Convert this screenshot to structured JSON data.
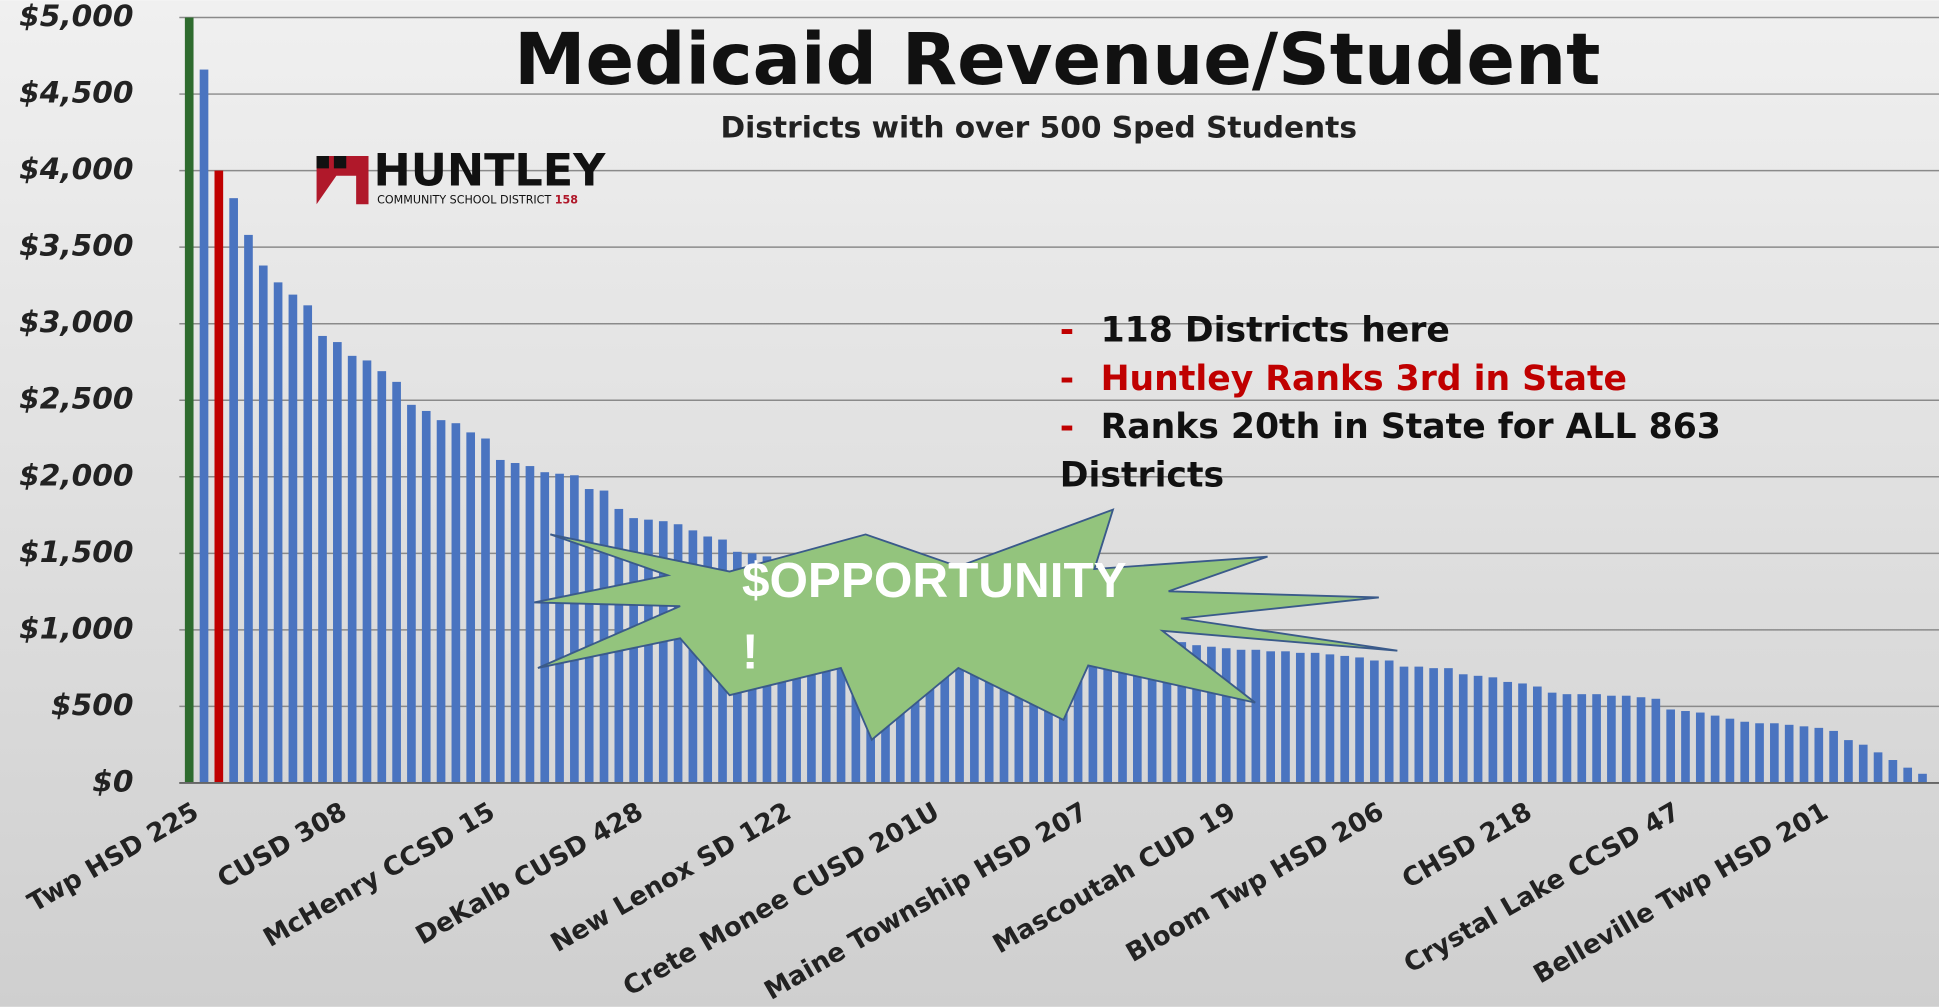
{
  "chart_data": {
    "type": "bar",
    "title": "Medicaid Revenue/Student",
    "subtitle": "Districts with over 500 Sped Students",
    "logo": {
      "name": "HUNTLEY",
      "tagline": "COMMUNITY SCHOOL DISTRICT",
      "number": "158"
    },
    "notes": [
      {
        "bullet": "-",
        "lines": [
          "118 Districts here"
        ],
        "color": "#111111"
      },
      {
        "bullet": "-",
        "lines": [
          "Huntley Ranks 3rd in State"
        ],
        "color": "#c00000"
      },
      {
        "bullet": "-",
        "lines": [
          "Ranks 20th in State for ALL 863",
          "Districts"
        ],
        "color": "#111111"
      }
    ],
    "callout": {
      "lines": [
        "$OPPORTUNITY",
        "!"
      ],
      "color": "#93c47d"
    },
    "categories": [
      "Twp HSD 225",
      null,
      null,
      null,
      null,
      null,
      null,
      null,
      null,
      null,
      "CUSD 308",
      null,
      null,
      null,
      null,
      null,
      null,
      null,
      null,
      null,
      "McHenry CCSD 15",
      null,
      null,
      null,
      null,
      null,
      null,
      null,
      null,
      null,
      "DeKalb CUSD 428",
      null,
      null,
      null,
      null,
      null,
      null,
      null,
      null,
      null,
      "New Lenox SD 122",
      null,
      null,
      null,
      null,
      null,
      null,
      null,
      null,
      null,
      "Crete Monee CUSD 201U",
      null,
      null,
      null,
      null,
      null,
      null,
      null,
      null,
      null,
      "Maine Township HSD 207",
      null,
      null,
      null,
      null,
      null,
      null,
      null,
      null,
      null,
      "Mascoutah CUD 19",
      null,
      null,
      null,
      null,
      null,
      null,
      null,
      null,
      null,
      "Bloom Twp HSD 206",
      null,
      null,
      null,
      null,
      null,
      null,
      null,
      null,
      null,
      "CHSD 218",
      null,
      null,
      null,
      null,
      null,
      null,
      null,
      null,
      null,
      "Crystal Lake CCSD 47",
      null,
      null,
      null,
      null,
      null,
      null,
      null,
      null,
      null,
      "Belleville Twp HSD 201",
      null,
      null,
      null,
      null,
      null,
      null,
      null
    ],
    "values": [
      5000,
      4660,
      4000,
      3820,
      3580,
      3380,
      3270,
      3190,
      3120,
      2920,
      2880,
      2790,
      2760,
      2690,
      2620,
      2470,
      2430,
      2370,
      2350,
      2290,
      2250,
      2110,
      2090,
      2070,
      2030,
      2020,
      2010,
      1920,
      1910,
      1790,
      1730,
      1720,
      1710,
      1690,
      1650,
      1610,
      1590,
      1510,
      1500,
      1480,
      1460,
      1440,
      1420,
      1400,
      1380,
      1360,
      1340,
      1320,
      1300,
      1280,
      1260,
      1240,
      1220,
      1200,
      1180,
      1160,
      1140,
      1120,
      1100,
      1080,
      1060,
      1040,
      1020,
      1000,
      980,
      960,
      940,
      920,
      900,
      890,
      880,
      870,
      870,
      860,
      860,
      850,
      850,
      840,
      830,
      820,
      800,
      800,
      760,
      760,
      750,
      750,
      710,
      700,
      690,
      660,
      650,
      630,
      590,
      580,
      580,
      580,
      570,
      570,
      560,
      550,
      480,
      470,
      460,
      440,
      420,
      400,
      390,
      390,
      380,
      370,
      360,
      340,
      280,
      250,
      200,
      150,
      100,
      60
    ],
    "color": "#4a74c0",
    "highlight_colors": [
      "#2e6b2e",
      null,
      "#c00000"
    ],
    "ylim": [
      0,
      5000
    ],
    "yticks": [
      {
        "value": 0,
        "label": "$0"
      },
      {
        "value": 500,
        "label": "$500"
      },
      {
        "value": 1000,
        "label": "$1,000"
      },
      {
        "value": 1500,
        "label": "$1,500"
      },
      {
        "value": 2000,
        "label": "$2,000"
      },
      {
        "value": 2500,
        "label": "$2,500"
      },
      {
        "value": 3000,
        "label": "$3,000"
      },
      {
        "value": 3500,
        "label": "$3,500"
      },
      {
        "value": 4000,
        "label": "$4,000"
      },
      {
        "value": 4500,
        "label": "$4,500"
      },
      {
        "value": 5000,
        "label": "$5,000"
      }
    ],
    "grid": true
  }
}
